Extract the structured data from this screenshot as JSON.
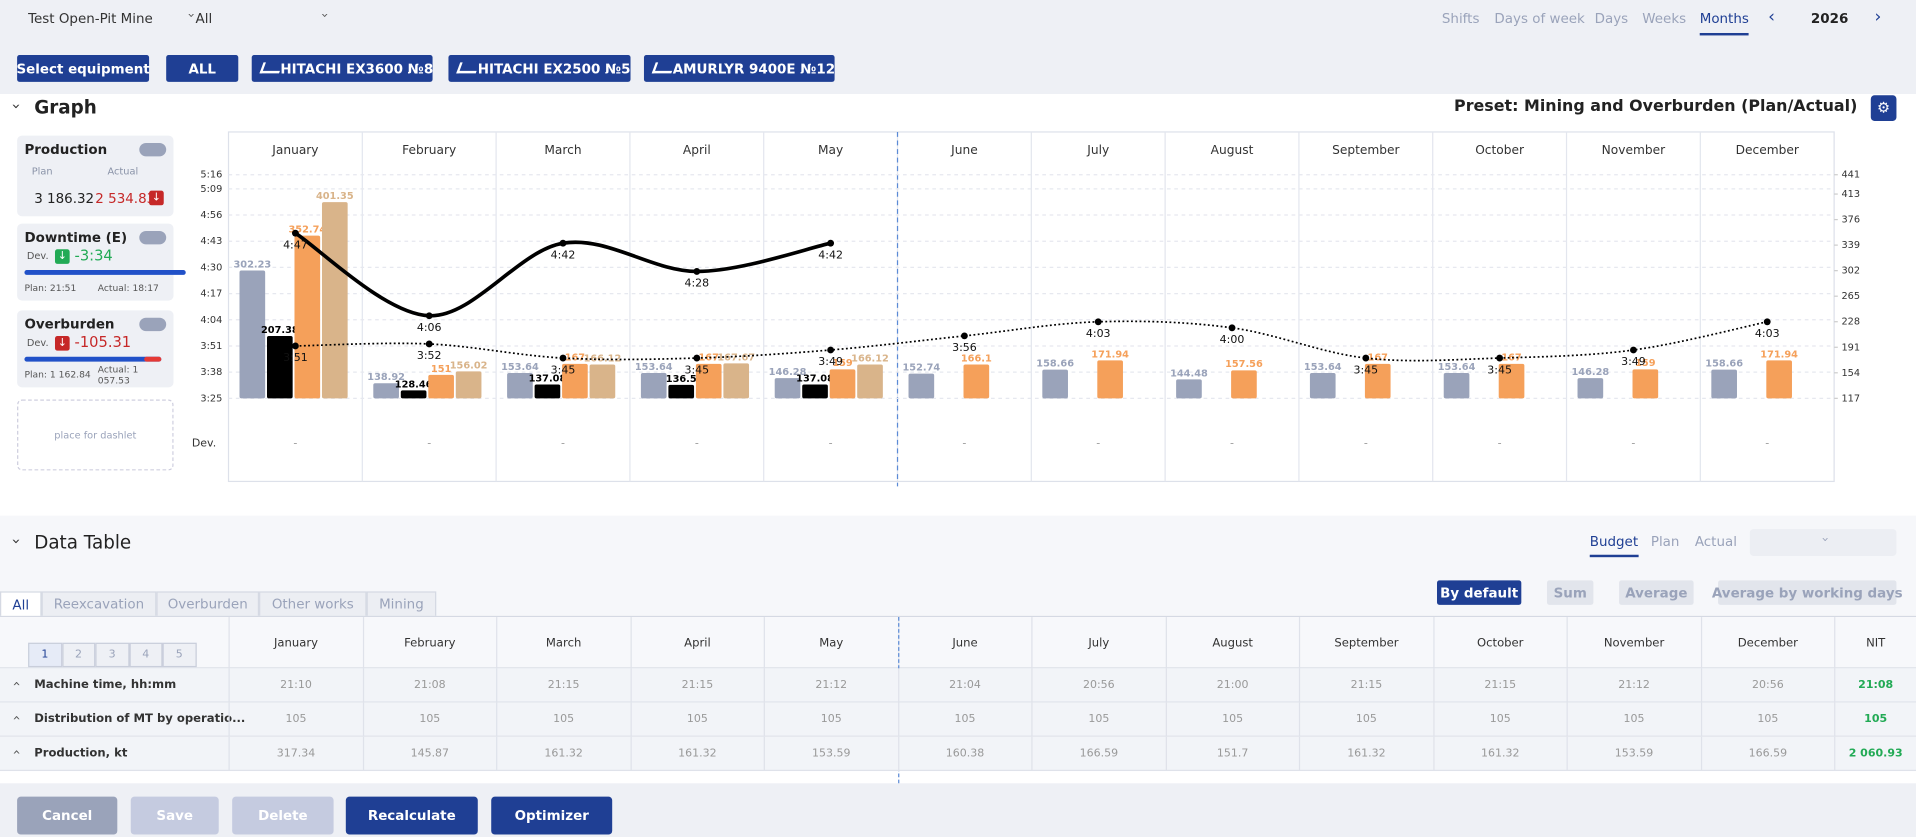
{
  "header": {
    "mine": "Test Open-Pit Mine",
    "filter": "All",
    "periods": [
      "Shifts",
      "Days of week",
      "Days",
      "Weeks",
      "Months"
    ],
    "year": "2026"
  },
  "equipment": {
    "select": "Select equipment",
    "all": "ALL",
    "items": [
      "HITACHI EX3600 №8",
      "HITACHI EX2500 №5",
      "AMURLYR 9400E №12"
    ]
  },
  "graph": {
    "title": "Graph",
    "preset": "Preset: Mining and Overburden (Plan/Actual)",
    "placeholder": "place for dashlet",
    "production": {
      "title": "Production",
      "plan_label": "Plan",
      "actual_label": "Actual",
      "plan": "3 186.32",
      "actual": "2 534.83"
    },
    "downtime": {
      "title": "Downtime (E)",
      "dev_label": "Dev.",
      "dev": "-3:34",
      "plan": "Plan: 21:51",
      "actual": "Actual: 18:17"
    },
    "overburden": {
      "title": "Overburden",
      "dev_label": "Dev.",
      "dev": "-105.31",
      "plan": "Plan: 1 162.84",
      "actual": "Actual: 1 057.53"
    }
  },
  "chart_data": {
    "type": "bar_line",
    "categories": [
      "January",
      "February",
      "March",
      "April",
      "May",
      "June",
      "July",
      "August",
      "September",
      "October",
      "November",
      "December"
    ],
    "series": [
      {
        "type": "bar",
        "axis": "y2",
        "color": "#9aa3ba",
        "values": [
          302.23,
          138.92,
          153.64,
          153.64,
          146.28,
          152.74,
          158.66,
          144.48,
          153.64,
          153.64,
          146.28,
          158.66
        ]
      },
      {
        "type": "bar",
        "axis": "y2",
        "color": "#000000",
        "values": [
          207.38,
          128.46,
          137.08,
          136.5,
          137.08,
          null,
          null,
          null,
          null,
          null,
          null,
          null
        ]
      },
      {
        "type": "bar",
        "axis": "y2",
        "color": "#f5a05a",
        "values": [
          352.74,
          151,
          167,
          167,
          159,
          166.1,
          171.94,
          157.56,
          167,
          167,
          159,
          171.94
        ]
      },
      {
        "type": "bar",
        "axis": "y2",
        "color": "#d9b48a",
        "values": [
          401.35,
          156.02,
          166.12,
          167.67,
          166.12,
          null,
          null,
          null,
          null,
          null,
          null,
          null
        ]
      },
      {
        "type": "line",
        "axis": "y",
        "color": "#000000",
        "style": "solid",
        "values": [
          287,
          246,
          282,
          268,
          282,
          null,
          null,
          null,
          null,
          null,
          null,
          null
        ],
        "value_labels": [
          "4:47",
          "4:06",
          "4:42",
          "4:28",
          "4:42",
          null,
          null,
          null,
          null,
          null,
          null,
          null
        ]
      },
      {
        "type": "line",
        "axis": "y",
        "color": "#000000",
        "style": "dotted",
        "values": [
          231,
          232,
          225,
          225,
          229,
          236,
          243,
          240,
          225,
          225,
          229,
          243
        ],
        "value_labels": [
          "3:51",
          "3:52",
          "3:45",
          "3:45",
          "3:49",
          "3:56",
          "4:03",
          "4:00",
          "3:45",
          "3:45",
          "3:49",
          "4:03"
        ]
      }
    ],
    "ylim": [
      205,
      316
    ],
    "yticks": [
      {
        "value": 205,
        "label": "3:25"
      },
      {
        "value": 218,
        "label": "3:38"
      },
      {
        "value": 231,
        "label": "3:51"
      },
      {
        "value": 244,
        "label": "4:04"
      },
      {
        "value": 257,
        "label": "4:17"
      },
      {
        "value": 270,
        "label": "4:30"
      },
      {
        "value": 283,
        "label": "4:43"
      },
      {
        "value": 296,
        "label": "4:56"
      },
      {
        "value": 309,
        "label": "5:09"
      },
      {
        "value": 316,
        "label": "5:16"
      }
    ],
    "y2lim": [
      117,
      441
    ],
    "y2ticks": [
      117,
      154,
      191,
      228,
      265,
      302,
      339,
      376,
      413,
      441
    ],
    "grid": true,
    "dev_label": "Dev.",
    "dev_values": [
      "-",
      "-",
      "-",
      "-",
      "-",
      "-",
      "-",
      "-",
      "-",
      "-",
      "-",
      "-"
    ]
  },
  "data_table": {
    "title": "Data Table",
    "tabs": [
      "All",
      "Reexcavation",
      "Overburden",
      "Other works",
      "Mining"
    ],
    "modes": [
      "Budget",
      "Plan",
      "Actual"
    ],
    "aggregations": [
      "By default",
      "Sum",
      "Average",
      "Average by working days"
    ],
    "pages": [
      "1",
      "2",
      "3",
      "4",
      "5"
    ],
    "columns": [
      "January",
      "February",
      "March",
      "April",
      "May",
      "June",
      "July",
      "August",
      "September",
      "October",
      "November",
      "December",
      "NIT"
    ],
    "rows": [
      {
        "label": "Machine time, hh:mm",
        "cells": [
          "21:10",
          "21:08",
          "21:15",
          "21:15",
          "21:12",
          "21:04",
          "20:56",
          "21:00",
          "21:15",
          "21:15",
          "21:12",
          "20:56",
          "21:08"
        ]
      },
      {
        "label": "Distribution of MT by operatio...",
        "cells": [
          "105",
          "105",
          "105",
          "105",
          "105",
          "105",
          "105",
          "105",
          "105",
          "105",
          "105",
          "105",
          "105"
        ]
      },
      {
        "label": "Production, kt",
        "cells": [
          "317.34",
          "145.87",
          "161.32",
          "161.32",
          "153.59",
          "160.38",
          "166.59",
          "151.7",
          "161.32",
          "161.32",
          "153.59",
          "166.59",
          "2 060.93"
        ]
      }
    ]
  },
  "footer": {
    "buttons": [
      "Cancel",
      "Save",
      "Delete",
      "Recalculate",
      "Optimizer"
    ]
  }
}
